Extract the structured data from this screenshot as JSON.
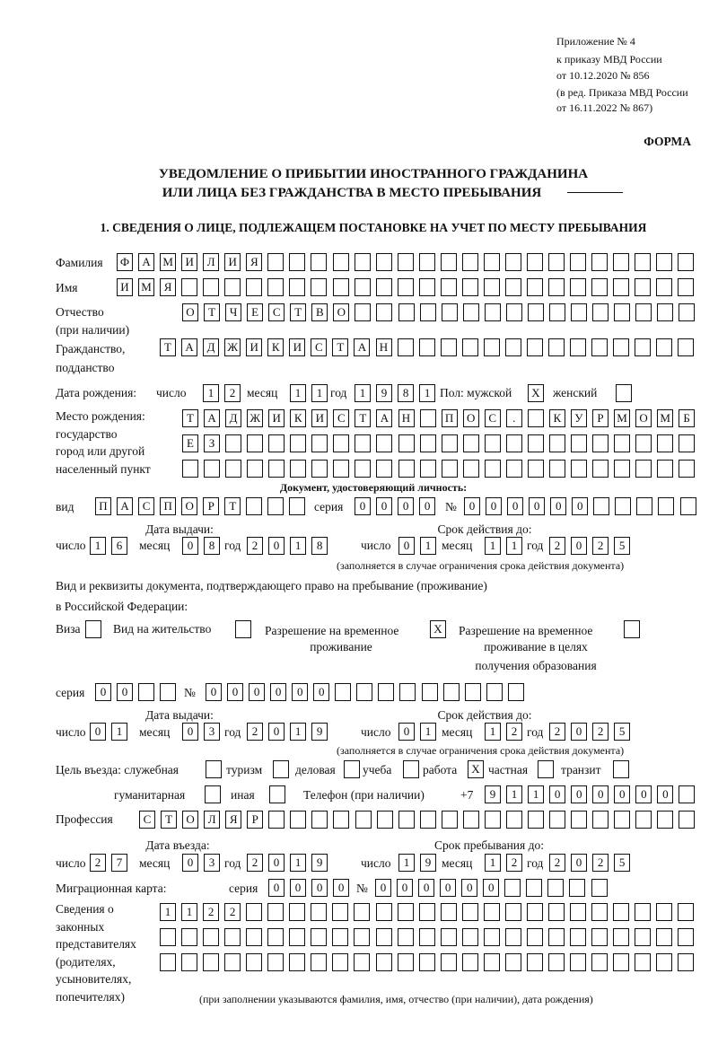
{
  "header": {
    "appendix": "Приложение № 4",
    "order": "к приказу МВД России",
    "order_date": "от 10.12.2020 № 856",
    "edit1": "(в ред. Приказа МВД России",
    "edit2": "от 16.11.2022 № 867)",
    "form": "ФОРМА",
    "title1": "УВЕДОМЛЕНИЕ О ПРИБЫТИИ ИНОСТРАННОГО ГРАЖДАНИНА",
    "title2": "ИЛИ ЛИЦА БЕЗ ГРАЖДАНСТВА В МЕСТО ПРЕБЫВАНИЯ",
    "section1": "1. СВЕДЕНИЯ О ЛИЦЕ, ПОДЛЕЖАЩЕМ ПОСТАНОВКЕ НА УЧЕТ ПО МЕСТУ ПРЕБЫВАНИЯ"
  },
  "labels": {
    "surname": "Фамилия",
    "name": "Имя",
    "patronymic1": "Отчество",
    "patronymic2": "(при наличии)",
    "citizenship1": "Гражданство,",
    "citizenship2": "подданство",
    "birth_date": "Дата рождения:",
    "day": "число",
    "month": "месяц",
    "year": "год",
    "sex": "Пол: мужской",
    "female": "женский",
    "birthplace1": "Место рождения:",
    "birthplace2": "государство",
    "birthplace3": "город или другой",
    "birthplace4": "населенный пункт",
    "id_doc": "Документ, удостоверяющий личность:",
    "kind": "вид",
    "series": "серия",
    "number": "№",
    "issue_date": "Дата выдачи:",
    "valid_until": "Срок действия до:",
    "validity_note": "(заполняется в случае ограничения срока действия документа)",
    "stay_doc1": "Вид и реквизиты документа, подтверждающего право на пребывание (проживание)",
    "stay_doc2": "в Российской Федерации:",
    "visa": "Виза",
    "residence_permit": "Вид на жительство",
    "temp_residence1": "Разрешение на временное",
    "temp_residence2": "проживание",
    "temp_edu1": "Разрешение на временное",
    "temp_edu2": "проживание в целях",
    "temp_edu3": "получения образования",
    "purpose": "Цель въезда: служебная",
    "tourism": "туризм",
    "business": "деловая",
    "study": "учеба",
    "work": "работа",
    "private": "частная",
    "transit": "транзит",
    "humanitarian": "гуманитарная",
    "other": "иная",
    "phone": "Телефон (при наличии)",
    "phone_prefix": "+7",
    "profession": "Профессия",
    "entry_date": "Дата въезда:",
    "stay_until": "Срок пребывания до:",
    "migration_card": "Миграционная карта:",
    "reps1": "Сведения о",
    "reps2": "законных",
    "reps3": "представителях",
    "reps4": "(родителях,",
    "reps5": "усыновителях,",
    "reps6": "попечителях)",
    "reps_note": "(при заполнении указываются фамилия, имя, отчество (при наличии), дата рождения)"
  },
  "fields": {
    "surname": [
      "Ф",
      "А",
      "М",
      "И",
      "Л",
      "И",
      "Я",
      "",
      "",
      "",
      "",
      "",
      "",
      "",
      "",
      "",
      "",
      "",
      "",
      "",
      "",
      "",
      "",
      "",
      "",
      "",
      ""
    ],
    "name": [
      "И",
      "М",
      "Я",
      "",
      "",
      "",
      "",
      "",
      "",
      "",
      "",
      "",
      "",
      "",
      "",
      "",
      "",
      "",
      "",
      "",
      "",
      "",
      "",
      "",
      "",
      "",
      ""
    ],
    "patronymic": [
      "О",
      "Т",
      "Ч",
      "Е",
      "С",
      "Т",
      "В",
      "О",
      "",
      "",
      "",
      "",
      "",
      "",
      "",
      "",
      "",
      "",
      "",
      "",
      "",
      "",
      "",
      ""
    ],
    "citizenship": [
      "Т",
      "А",
      "Д",
      "Ж",
      "И",
      "К",
      "И",
      "С",
      "Т",
      "А",
      "Н",
      "",
      "",
      "",
      "",
      "",
      "",
      "",
      "",
      "",
      "",
      "",
      "",
      "",
      ""
    ],
    "birth_day": [
      "1",
      "2"
    ],
    "birth_month": [
      "1",
      "1"
    ],
    "birth_year": [
      "1",
      "9",
      "8",
      "1"
    ],
    "sex_male": [
      "X"
    ],
    "sex_female": [
      ""
    ],
    "birthplace_1": [
      "Т",
      "А",
      "Д",
      "Ж",
      "И",
      "К",
      "И",
      "С",
      "Т",
      "А",
      "Н",
      "",
      "П",
      "О",
      "С",
      ".",
      "",
      "К",
      "У",
      "Р",
      "М",
      "О",
      "М",
      "Б"
    ],
    "birthplace_2": [
      "Е",
      "З",
      "",
      "",
      "",
      "",
      "",
      "",
      "",
      "",
      "",
      "",
      "",
      "",
      "",
      "",
      "",
      "",
      "",
      "",
      "",
      "",
      "",
      ""
    ],
    "birthplace_3": [
      "",
      "",
      "",
      "",
      "",
      "",
      "",
      "",
      "",
      "",
      "",
      "",
      "",
      "",
      "",
      "",
      "",
      "",
      "",
      "",
      "",
      "",
      "",
      ""
    ],
    "id_kind": [
      "П",
      "А",
      "С",
      "П",
      "О",
      "Р",
      "Т",
      "",
      "",
      ""
    ],
    "id_series": [
      "0",
      "0",
      "0",
      "0"
    ],
    "id_number": [
      "0",
      "0",
      "0",
      "0",
      "0",
      "0",
      "",
      "",
      "",
      "",
      ""
    ],
    "id_issue_day": [
      "1",
      "6"
    ],
    "id_issue_month": [
      "0",
      "8"
    ],
    "id_issue_year": [
      "2",
      "0",
      "1",
      "8"
    ],
    "id_valid_day": [
      "0",
      "1"
    ],
    "id_valid_month": [
      "1",
      "1"
    ],
    "id_valid_year": [
      "2",
      "0",
      "2",
      "5"
    ],
    "doc_visa": [
      ""
    ],
    "doc_residence_permit": [
      ""
    ],
    "doc_temp_residence": [
      "X"
    ],
    "doc_temp_edu": [
      ""
    ],
    "stay_series": [
      "0",
      "0",
      "",
      ""
    ],
    "stay_number": [
      "0",
      "0",
      "0",
      "0",
      "0",
      "0",
      "",
      "",
      "",
      "",
      "",
      "",
      "",
      "",
      ""
    ],
    "stay_issue_day": [
      "0",
      "1"
    ],
    "stay_issue_month": [
      "0",
      "3"
    ],
    "stay_issue_year": [
      "2",
      "0",
      "1",
      "9"
    ],
    "stay_valid_day": [
      "0",
      "1"
    ],
    "stay_valid_month": [
      "1",
      "2"
    ],
    "stay_valid_year": [
      "2",
      "0",
      "2",
      "5"
    ],
    "purpose_official": [
      ""
    ],
    "purpose_tourism": [
      ""
    ],
    "purpose_business": [
      ""
    ],
    "purpose_study": [
      ""
    ],
    "purpose_work": [
      "X"
    ],
    "purpose_private": [
      ""
    ],
    "purpose_transit": [
      ""
    ],
    "purpose_humanitarian": [
      ""
    ],
    "purpose_other": [
      ""
    ],
    "phone": [
      "9",
      "1",
      "1",
      "0",
      "0",
      "0",
      "0",
      "0",
      "0",
      ""
    ],
    "profession": [
      "С",
      "Т",
      "О",
      "Л",
      "Я",
      "Р",
      "",
      "",
      "",
      "",
      "",
      "",
      "",
      "",
      "",
      "",
      "",
      "",
      "",
      "",
      "",
      "",
      "",
      "",
      "",
      ""
    ],
    "entry_day": [
      "2",
      "7"
    ],
    "entry_month": [
      "0",
      "3"
    ],
    "entry_year": [
      "2",
      "0",
      "1",
      "9"
    ],
    "stay_until_day": [
      "1",
      "9"
    ],
    "stay_until_month": [
      "1",
      "2"
    ],
    "stay_until_year": [
      "2",
      "0",
      "2",
      "5"
    ],
    "mc_series": [
      "0",
      "0",
      "0",
      "0"
    ],
    "mc_number": [
      "0",
      "0",
      "0",
      "0",
      "0",
      "0",
      "",
      "",
      "",
      "",
      ""
    ],
    "reps_1": [
      "1",
      "1",
      "2",
      "2",
      "",
      "",
      "",
      "",
      "",
      "",
      "",
      "",
      "",
      "",
      "",
      "",
      "",
      "",
      "",
      "",
      "",
      "",
      "",
      "",
      ""
    ],
    "reps_2": [
      "",
      "",
      "",
      "",
      "",
      "",
      "",
      "",
      "",
      "",
      "",
      "",
      "",
      "",
      "",
      "",
      "",
      "",
      "",
      "",
      "",
      "",
      "",
      "",
      ""
    ],
    "reps_3": [
      "",
      "",
      "",
      "",
      "",
      "",
      "",
      "",
      "",
      "",
      "",
      "",
      "",
      "",
      "",
      "",
      "",
      "",
      "",
      "",
      "",
      "",
      "",
      "",
      ""
    ]
  }
}
